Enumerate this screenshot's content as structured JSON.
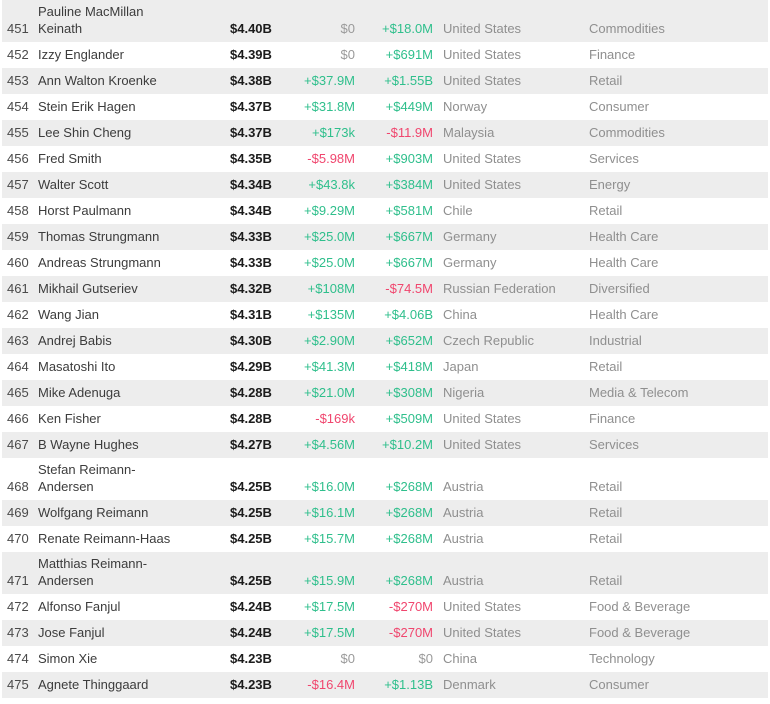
{
  "colors": {
    "positive_green": "#2fbf8c",
    "negative_red": "#f0466e",
    "neutral_gray": "#9a9a9a",
    "muted_text": "#8f8f8f",
    "net_worth_text": "#1b1b1b",
    "name_text": "#3c3c3c",
    "row_band_gray": "#ededed",
    "row_band_white": "#ffffff"
  },
  "table": {
    "columns": [
      "rank",
      "name",
      "net_worth",
      "daily_change",
      "ytd_change",
      "country",
      "industry"
    ],
    "rows": [
      {
        "rank": "451",
        "name": "Pauline MacMillan\nKeinath",
        "net_worth": "$4.40B",
        "daily_change": "$0",
        "ytd_change": "+$18.0M",
        "country": "United States",
        "industry": "Commodities"
      },
      {
        "rank": "452",
        "name": "Izzy Englander",
        "net_worth": "$4.39B",
        "daily_change": "$0",
        "ytd_change": "+$691M",
        "country": "United States",
        "industry": "Finance"
      },
      {
        "rank": "453",
        "name": "Ann Walton Kroenke",
        "net_worth": "$4.38B",
        "daily_change": "+$37.9M",
        "ytd_change": "+$1.55B",
        "country": "United States",
        "industry": "Retail"
      },
      {
        "rank": "454",
        "name": "Stein Erik Hagen",
        "net_worth": "$4.37B",
        "daily_change": "+$31.8M",
        "ytd_change": "+$449M",
        "country": "Norway",
        "industry": "Consumer"
      },
      {
        "rank": "455",
        "name": "Lee Shin Cheng",
        "net_worth": "$4.37B",
        "daily_change": "+$173k",
        "ytd_change": "-$11.9M",
        "country": "Malaysia",
        "industry": "Commodities"
      },
      {
        "rank": "456",
        "name": "Fred Smith",
        "net_worth": "$4.35B",
        "daily_change": "-$5.98M",
        "ytd_change": "+$903M",
        "country": "United States",
        "industry": "Services"
      },
      {
        "rank": "457",
        "name": "Walter Scott",
        "net_worth": "$4.34B",
        "daily_change": "+$43.8k",
        "ytd_change": "+$384M",
        "country": "United States",
        "industry": "Energy"
      },
      {
        "rank": "458",
        "name": "Horst Paulmann",
        "net_worth": "$4.34B",
        "daily_change": "+$9.29M",
        "ytd_change": "+$581M",
        "country": "Chile",
        "industry": "Retail"
      },
      {
        "rank": "459",
        "name": "Thomas Strungmann",
        "net_worth": "$4.33B",
        "daily_change": "+$25.0M",
        "ytd_change": "+$667M",
        "country": "Germany",
        "industry": "Health Care"
      },
      {
        "rank": "460",
        "name": "Andreas Strungmann",
        "net_worth": "$4.33B",
        "daily_change": "+$25.0M",
        "ytd_change": "+$667M",
        "country": "Germany",
        "industry": "Health Care"
      },
      {
        "rank": "461",
        "name": "Mikhail Gutseriev",
        "net_worth": "$4.32B",
        "daily_change": "+$108M",
        "ytd_change": "-$74.5M",
        "country": "Russian Federation",
        "industry": "Diversified"
      },
      {
        "rank": "462",
        "name": "Wang Jian",
        "net_worth": "$4.31B",
        "daily_change": "+$135M",
        "ytd_change": "+$4.06B",
        "country": "China",
        "industry": "Health Care"
      },
      {
        "rank": "463",
        "name": "Andrej Babis",
        "net_worth": "$4.30B",
        "daily_change": "+$2.90M",
        "ytd_change": "+$652M",
        "country": "Czech Republic",
        "industry": "Industrial"
      },
      {
        "rank": "464",
        "name": "Masatoshi Ito",
        "net_worth": "$4.29B",
        "daily_change": "+$41.3M",
        "ytd_change": "+$418M",
        "country": "Japan",
        "industry": "Retail"
      },
      {
        "rank": "465",
        "name": "Mike Adenuga",
        "net_worth": "$4.28B",
        "daily_change": "+$21.0M",
        "ytd_change": "+$308M",
        "country": "Nigeria",
        "industry": "Media & Telecom"
      },
      {
        "rank": "466",
        "name": "Ken Fisher",
        "net_worth": "$4.28B",
        "daily_change": "-$169k",
        "ytd_change": "+$509M",
        "country": "United States",
        "industry": "Finance"
      },
      {
        "rank": "467",
        "name": "B Wayne Hughes",
        "net_worth": "$4.27B",
        "daily_change": "+$4.56M",
        "ytd_change": "+$10.2M",
        "country": "United States",
        "industry": "Services"
      },
      {
        "rank": "468",
        "name": "Stefan Reimann-\nAndersen",
        "net_worth": "$4.25B",
        "daily_change": "+$16.0M",
        "ytd_change": "+$268M",
        "country": "Austria",
        "industry": "Retail"
      },
      {
        "rank": "469",
        "name": "Wolfgang Reimann",
        "net_worth": "$4.25B",
        "daily_change": "+$16.1M",
        "ytd_change": "+$268M",
        "country": "Austria",
        "industry": "Retail"
      },
      {
        "rank": "470",
        "name": "Renate Reimann-Haas",
        "net_worth": "$4.25B",
        "daily_change": "+$15.7M",
        "ytd_change": "+$268M",
        "country": "Austria",
        "industry": "Retail"
      },
      {
        "rank": "471",
        "name": "Matthias Reimann-\nAndersen",
        "net_worth": "$4.25B",
        "daily_change": "+$15.9M",
        "ytd_change": "+$268M",
        "country": "Austria",
        "industry": "Retail"
      },
      {
        "rank": "472",
        "name": "Alfonso Fanjul",
        "net_worth": "$4.24B",
        "daily_change": "+$17.5M",
        "ytd_change": "-$270M",
        "country": "United States",
        "industry": "Food & Beverage"
      },
      {
        "rank": "473",
        "name": "Jose Fanjul",
        "net_worth": "$4.24B",
        "daily_change": "+$17.5M",
        "ytd_change": "-$270M",
        "country": "United States",
        "industry": "Food & Beverage"
      },
      {
        "rank": "474",
        "name": "Simon Xie",
        "net_worth": "$4.23B",
        "daily_change": "$0",
        "ytd_change": "$0",
        "country": "China",
        "industry": "Technology"
      },
      {
        "rank": "475",
        "name": "Agnete Thinggaard",
        "net_worth": "$4.23B",
        "daily_change": "-$16.4M",
        "ytd_change": "+$1.13B",
        "country": "Denmark",
        "industry": "Consumer"
      }
    ]
  }
}
